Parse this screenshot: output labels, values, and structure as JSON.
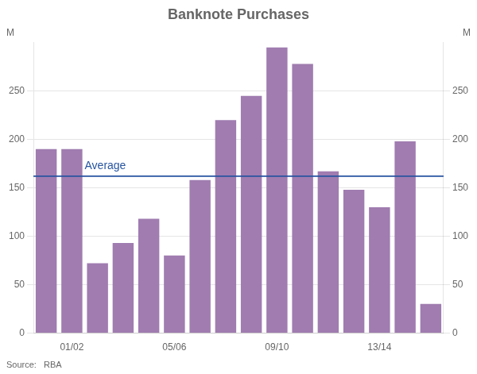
{
  "chart_data": {
    "type": "bar",
    "title": "Banknote Purchases",
    "categories": [
      null,
      "01/02",
      null,
      null,
      null,
      "05/06",
      null,
      null,
      null,
      "09/10",
      null,
      null,
      null,
      "13/14",
      null,
      null
    ],
    "values": [
      190,
      190,
      72,
      93,
      118,
      80,
      158,
      220,
      245,
      295,
      278,
      167,
      148,
      130,
      198,
      30
    ],
    "color": "#a07cb0",
    "ylim": [
      0,
      300
    ],
    "yticks": [
      0,
      50,
      100,
      150,
      200,
      250
    ],
    "y2lim": [
      0,
      300
    ],
    "y2ticks": [
      0,
      50,
      100,
      150,
      200,
      250
    ],
    "ylabel": "M",
    "y2label": "M",
    "annotations": [
      {
        "type": "hline",
        "y": 162,
        "label": "Average",
        "color": "#2855a0"
      }
    ],
    "source": "Source:   RBA",
    "grid": true
  }
}
